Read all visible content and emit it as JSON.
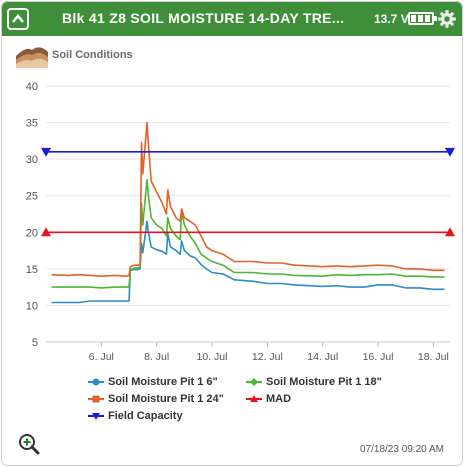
{
  "header": {
    "title": "Blk 41 Z8 SOIL MOISTURE 14-DAY TRE...",
    "voltage": "13.7 V",
    "battery_icon": "battery-full-icon",
    "settings_icon": "gear-icon",
    "collapse_icon": "chevron-up-icon",
    "color": "#3f8f3a"
  },
  "subheader": {
    "label": "Soil Conditions",
    "icon": "soil-layers-icon"
  },
  "footer": {
    "timestamp": "07/18/23 09:20 AM",
    "zoom_icon": "zoom-in-icon"
  },
  "chart_data": {
    "type": "line",
    "title": "",
    "xlabel": "",
    "ylabel": "",
    "ylim": [
      5,
      40
    ],
    "yticks": [
      5,
      10,
      15,
      20,
      25,
      30,
      35,
      40
    ],
    "xlim": [
      4.0,
      18.6
    ],
    "xticks": [
      {
        "x": 6,
        "label": "6. Jul"
      },
      {
        "x": 8,
        "label": "8. Jul"
      },
      {
        "x": 10,
        "label": "10. Jul"
      },
      {
        "x": 12,
        "label": "12. Jul"
      },
      {
        "x": 14,
        "label": "14. Jul"
      },
      {
        "x": 16,
        "label": "16. Jul"
      },
      {
        "x": 18,
        "label": "18. Jul"
      }
    ],
    "grid": "horizontal",
    "legend_position": "bottom",
    "series": [
      {
        "name": "Soil Moisture Pit 1 6\"",
        "color": "#2b8cc4",
        "marker": "circle",
        "points": [
          [
            4.2,
            10.4
          ],
          [
            4.8,
            10.4
          ],
          [
            5.2,
            10.4
          ],
          [
            5.6,
            10.6
          ],
          [
            6.0,
            10.6
          ],
          [
            6.5,
            10.6
          ],
          [
            6.9,
            10.6
          ],
          [
            7.0,
            10.6
          ],
          [
            7.05,
            14.8
          ],
          [
            7.15,
            14.9
          ],
          [
            7.3,
            14.9
          ],
          [
            7.4,
            15.0
          ],
          [
            7.45,
            18.5
          ],
          [
            7.5,
            17.2
          ],
          [
            7.65,
            21.5
          ],
          [
            7.7,
            20.0
          ],
          [
            7.8,
            18.0
          ],
          [
            8.0,
            17.6
          ],
          [
            8.2,
            17.4
          ],
          [
            8.35,
            17.0
          ],
          [
            8.4,
            19.8
          ],
          [
            8.5,
            18.0
          ],
          [
            8.7,
            17.5
          ],
          [
            8.85,
            17.0
          ],
          [
            8.9,
            18.8
          ],
          [
            9.0,
            17.5
          ],
          [
            9.2,
            16.8
          ],
          [
            9.4,
            16.5
          ],
          [
            9.6,
            15.6
          ],
          [
            9.8,
            15.0
          ],
          [
            10.0,
            14.5
          ],
          [
            10.4,
            14.3
          ],
          [
            10.8,
            13.5
          ],
          [
            11.5,
            13.3
          ],
          [
            12.0,
            13.0
          ],
          [
            12.5,
            13.0
          ],
          [
            13.0,
            12.8
          ],
          [
            14.0,
            12.6
          ],
          [
            14.5,
            12.7
          ],
          [
            15.0,
            12.5
          ],
          [
            15.5,
            12.5
          ],
          [
            16.0,
            12.8
          ],
          [
            16.5,
            12.8
          ],
          [
            17.0,
            12.4
          ],
          [
            17.5,
            12.4
          ],
          [
            18.0,
            12.2
          ],
          [
            18.4,
            12.2
          ]
        ]
      },
      {
        "name": "Soil Moisture Pit 1 18\"",
        "color": "#4cb533",
        "marker": "diamond",
        "points": [
          [
            4.2,
            12.5
          ],
          [
            4.8,
            12.5
          ],
          [
            5.2,
            12.5
          ],
          [
            5.6,
            12.5
          ],
          [
            6.0,
            12.4
          ],
          [
            6.5,
            12.5
          ],
          [
            6.9,
            12.5
          ],
          [
            7.0,
            12.5
          ],
          [
            7.05,
            14.9
          ],
          [
            7.2,
            15.1
          ],
          [
            7.4,
            15.2
          ],
          [
            7.45,
            24.0
          ],
          [
            7.5,
            21.0
          ],
          [
            7.65,
            27.2
          ],
          [
            7.7,
            25.0
          ],
          [
            7.8,
            22.0
          ],
          [
            8.0,
            21.0
          ],
          [
            8.2,
            20.5
          ],
          [
            8.35,
            19.5
          ],
          [
            8.4,
            22.0
          ],
          [
            8.5,
            20.5
          ],
          [
            8.7,
            19.5
          ],
          [
            8.85,
            19.0
          ],
          [
            8.9,
            23.0
          ],
          [
            9.0,
            21.0
          ],
          [
            9.2,
            19.5
          ],
          [
            9.4,
            18.5
          ],
          [
            9.6,
            17.0
          ],
          [
            9.8,
            16.5
          ],
          [
            10.0,
            16.0
          ],
          [
            10.4,
            15.5
          ],
          [
            10.8,
            14.5
          ],
          [
            11.5,
            14.5
          ],
          [
            12.0,
            14.3
          ],
          [
            12.5,
            14.3
          ],
          [
            13.0,
            14.1
          ],
          [
            14.0,
            14.0
          ],
          [
            14.5,
            14.2
          ],
          [
            15.0,
            14.1
          ],
          [
            15.5,
            14.2
          ],
          [
            16.0,
            14.2
          ],
          [
            16.5,
            14.3
          ],
          [
            17.0,
            14.0
          ],
          [
            17.5,
            14.0
          ],
          [
            18.0,
            13.9
          ],
          [
            18.4,
            13.9
          ]
        ]
      },
      {
        "name": "Soil Moisture Pit 1 24\"",
        "color": "#e2622a",
        "marker": "square",
        "points": [
          [
            4.2,
            14.2
          ],
          [
            4.8,
            14.1
          ],
          [
            5.2,
            14.2
          ],
          [
            5.6,
            14.1
          ],
          [
            6.0,
            14.0
          ],
          [
            6.5,
            14.1
          ],
          [
            6.9,
            14.0
          ],
          [
            7.0,
            14.1
          ],
          [
            7.05,
            15.3
          ],
          [
            7.2,
            15.5
          ],
          [
            7.4,
            15.5
          ],
          [
            7.45,
            32.3
          ],
          [
            7.5,
            28.0
          ],
          [
            7.65,
            35.0
          ],
          [
            7.7,
            32.0
          ],
          [
            7.8,
            27.0
          ],
          [
            8.0,
            25.5
          ],
          [
            8.2,
            24.0
          ],
          [
            8.35,
            22.5
          ],
          [
            8.4,
            25.8
          ],
          [
            8.5,
            23.5
          ],
          [
            8.7,
            22.0
          ],
          [
            8.85,
            21.5
          ],
          [
            8.9,
            23.2
          ],
          [
            9.0,
            22.0
          ],
          [
            9.2,
            21.5
          ],
          [
            9.4,
            21.0
          ],
          [
            9.6,
            19.5
          ],
          [
            9.8,
            18.0
          ],
          [
            10.0,
            17.5
          ],
          [
            10.4,
            17.0
          ],
          [
            10.8,
            16.0
          ],
          [
            11.5,
            16.0
          ],
          [
            12.0,
            15.8
          ],
          [
            12.5,
            15.8
          ],
          [
            13.0,
            15.5
          ],
          [
            14.0,
            15.3
          ],
          [
            14.5,
            15.4
          ],
          [
            15.0,
            15.3
          ],
          [
            15.5,
            15.4
          ],
          [
            16.0,
            15.5
          ],
          [
            16.5,
            15.4
          ],
          [
            17.0,
            15.0
          ],
          [
            17.5,
            15.0
          ],
          [
            18.0,
            14.8
          ],
          [
            18.4,
            14.8
          ]
        ]
      },
      {
        "name": "MAD",
        "color": "#e8141a",
        "marker": "triangle-up",
        "points": [
          [
            4.0,
            20.0
          ],
          [
            18.6,
            20.0
          ]
        ]
      },
      {
        "name": "Field Capacity",
        "color": "#1a1ae0",
        "marker": "triangle-down",
        "points": [
          [
            4.0,
            31.0
          ],
          [
            18.6,
            31.0
          ]
        ]
      }
    ]
  }
}
